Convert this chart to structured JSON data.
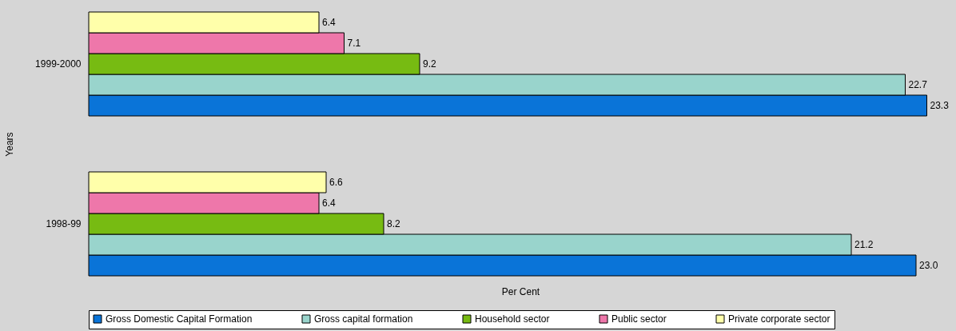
{
  "chart_data": {
    "type": "bar",
    "orientation": "horizontal",
    "xlabel": "Per Cent",
    "ylabel": "Years",
    "categories": [
      "1999-2000",
      "1998-99"
    ],
    "series": [
      {
        "name": "Gross Domestic Capital Formation",
        "color": "#0a74d8",
        "values": [
          23.3,
          23.0
        ],
        "value_labels": [
          "23.3",
          "23.0"
        ]
      },
      {
        "name": "Gross capital formation",
        "color": "#99d4cc",
        "values": [
          22.7,
          21.2
        ]
      },
      {
        "name": "Household sector",
        "color": "#77bb12",
        "values": [
          9.2,
          8.2
        ]
      },
      {
        "name": "Public sector",
        "color": "#ee77aa",
        "values": [
          7.1,
          6.4
        ]
      },
      {
        "name": "Private corporate sector",
        "color": "#ffffaa",
        "values": [
          6.4,
          6.6
        ]
      }
    ],
    "data_labels": true,
    "legend": "bottom",
    "grid": false,
    "tick_labels": "y"
  }
}
